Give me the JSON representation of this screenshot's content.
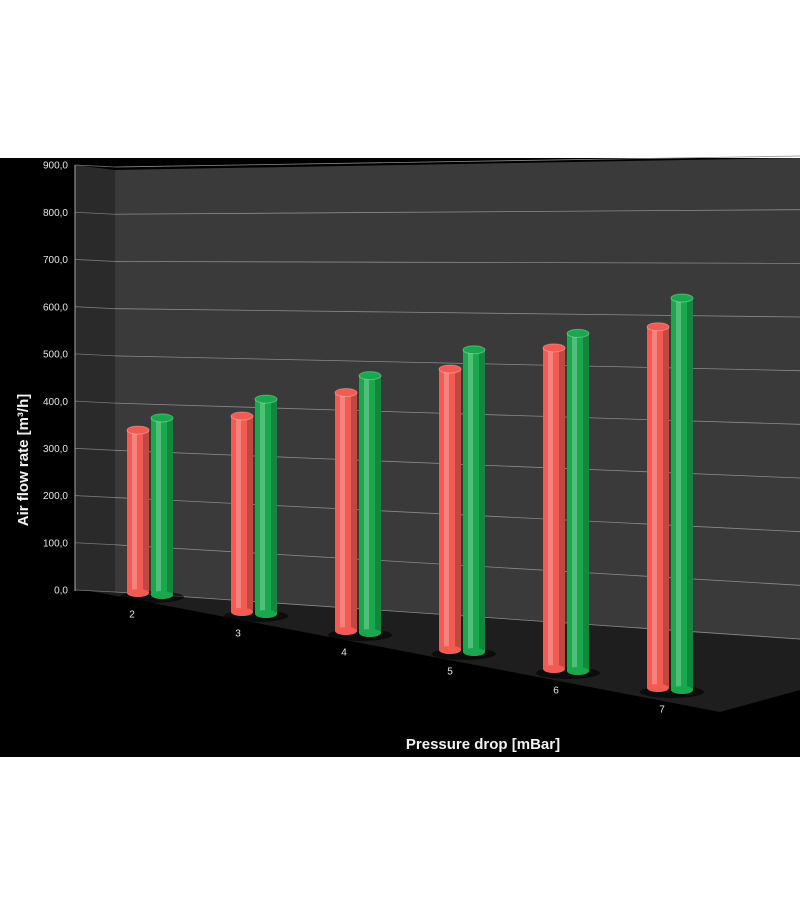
{
  "chart_data": {
    "type": "bar3d",
    "y_label": "Air flow rate [m³/h]",
    "x_label": "Pressure drop [mBar]",
    "categories": [
      "2",
      "3",
      "4",
      "5",
      "6",
      "7"
    ],
    "series": [
      {
        "color": "#f25a52",
        "values": [
          345,
          415,
          505,
          595,
          680,
          765
        ]
      },
      {
        "color": "#19a84e",
        "values": [
          375,
          455,
          545,
          640,
          715,
          830
        ]
      }
    ],
    "ylim": [
      0,
      900
    ],
    "yticks": [
      {
        "value": 0,
        "label": "0,0"
      },
      {
        "value": 100,
        "label": "100,0"
      },
      {
        "value": 200,
        "label": "200,0"
      },
      {
        "value": 300,
        "label": "300,0"
      },
      {
        "value": 400,
        "label": "400,0"
      },
      {
        "value": 500,
        "label": "500,0"
      },
      {
        "value": 600,
        "label": "600,0"
      },
      {
        "value": 700,
        "label": "700,0"
      },
      {
        "value": 800,
        "label": "800,0"
      },
      {
        "value": 900,
        "label": "900,0"
      }
    ],
    "grid": true
  }
}
